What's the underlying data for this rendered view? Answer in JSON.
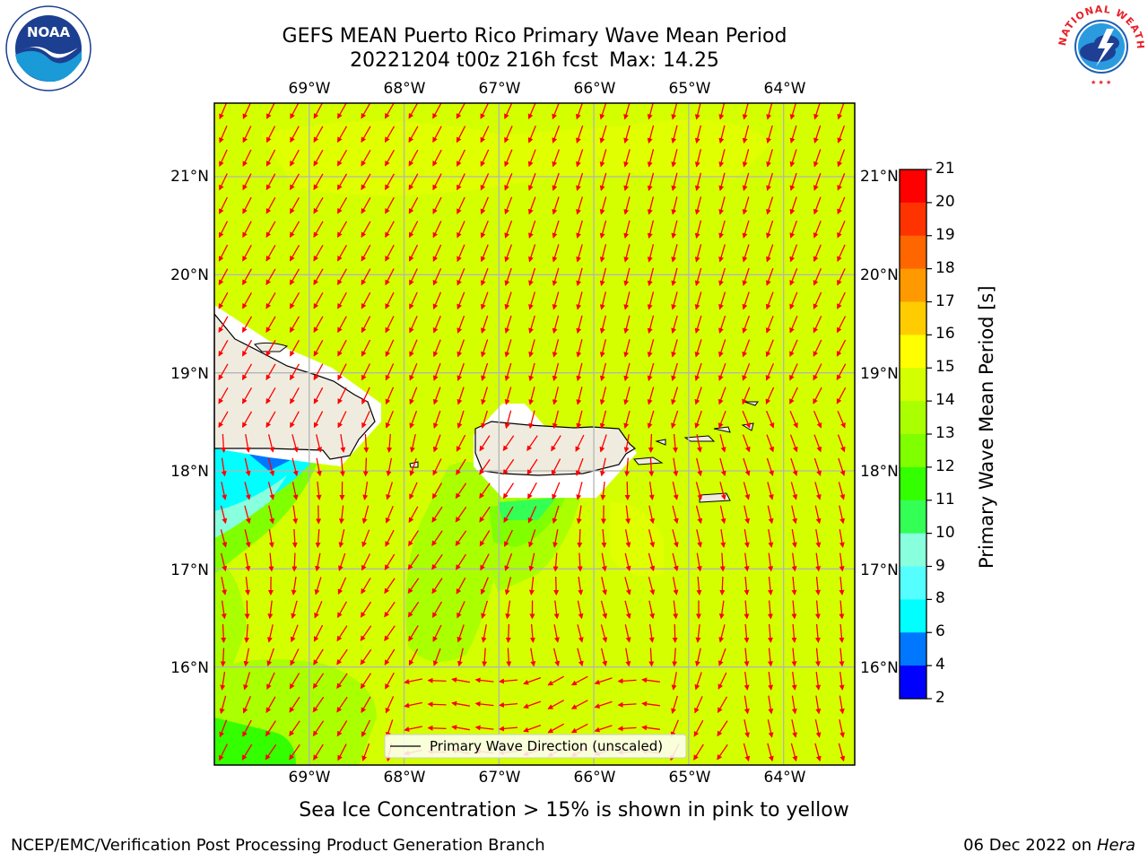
{
  "title": {
    "line1": "GEFS MEAN Puerto Rico Primary Wave Mean Period",
    "line2_run": "20221204 t00z 216h fcst",
    "line2_max": "Max: 14.25"
  },
  "map": {
    "lon_ticks": [
      "69°W",
      "68°W",
      "67°W",
      "66°W",
      "65°W",
      "64°W"
    ],
    "lat_ticks": [
      "21°N",
      "20°N",
      "19°N",
      "18°N",
      "17°N",
      "16°N"
    ],
    "lon_range": [
      -70.0,
      -63.25
    ],
    "lat_range": [
      15.0,
      21.75
    ],
    "ocean_color": "#d4ff00",
    "land_color": "#efecdf",
    "arrow_color": "#ff0000",
    "legend_label": "Primary Wave Direction (unscaled)",
    "dominant_direction": "toward south-southwest"
  },
  "colorbar": {
    "label": "Primary Wave Mean Period [s]",
    "ticks": [
      "21",
      "20",
      "19",
      "18",
      "17",
      "16",
      "15",
      "14",
      "13",
      "12",
      "11",
      "10",
      "9",
      "8",
      "6",
      "4",
      "2"
    ],
    "colors": [
      "#ff0000",
      "#ff3300",
      "#ff6600",
      "#ff9900",
      "#ffcc00",
      "#ffff00",
      "#d4ff00",
      "#aaff00",
      "#80ff00",
      "#33ff00",
      "#33ff55",
      "#88ffdd",
      "#55ffff",
      "#00ffff",
      "#0077ff",
      "#0000ff"
    ]
  },
  "logos": {
    "left_name": "NOAA",
    "right_name": "NATIONAL WEATHER SERVICE"
  },
  "note": "Sea Ice Concentration > 15% is shown in pink to yellow",
  "footer": {
    "left": "NCEP/EMC/Verification Post Processing Product Generation Branch",
    "right_date": "06 Dec 2022 on",
    "right_host": "Hera"
  }
}
